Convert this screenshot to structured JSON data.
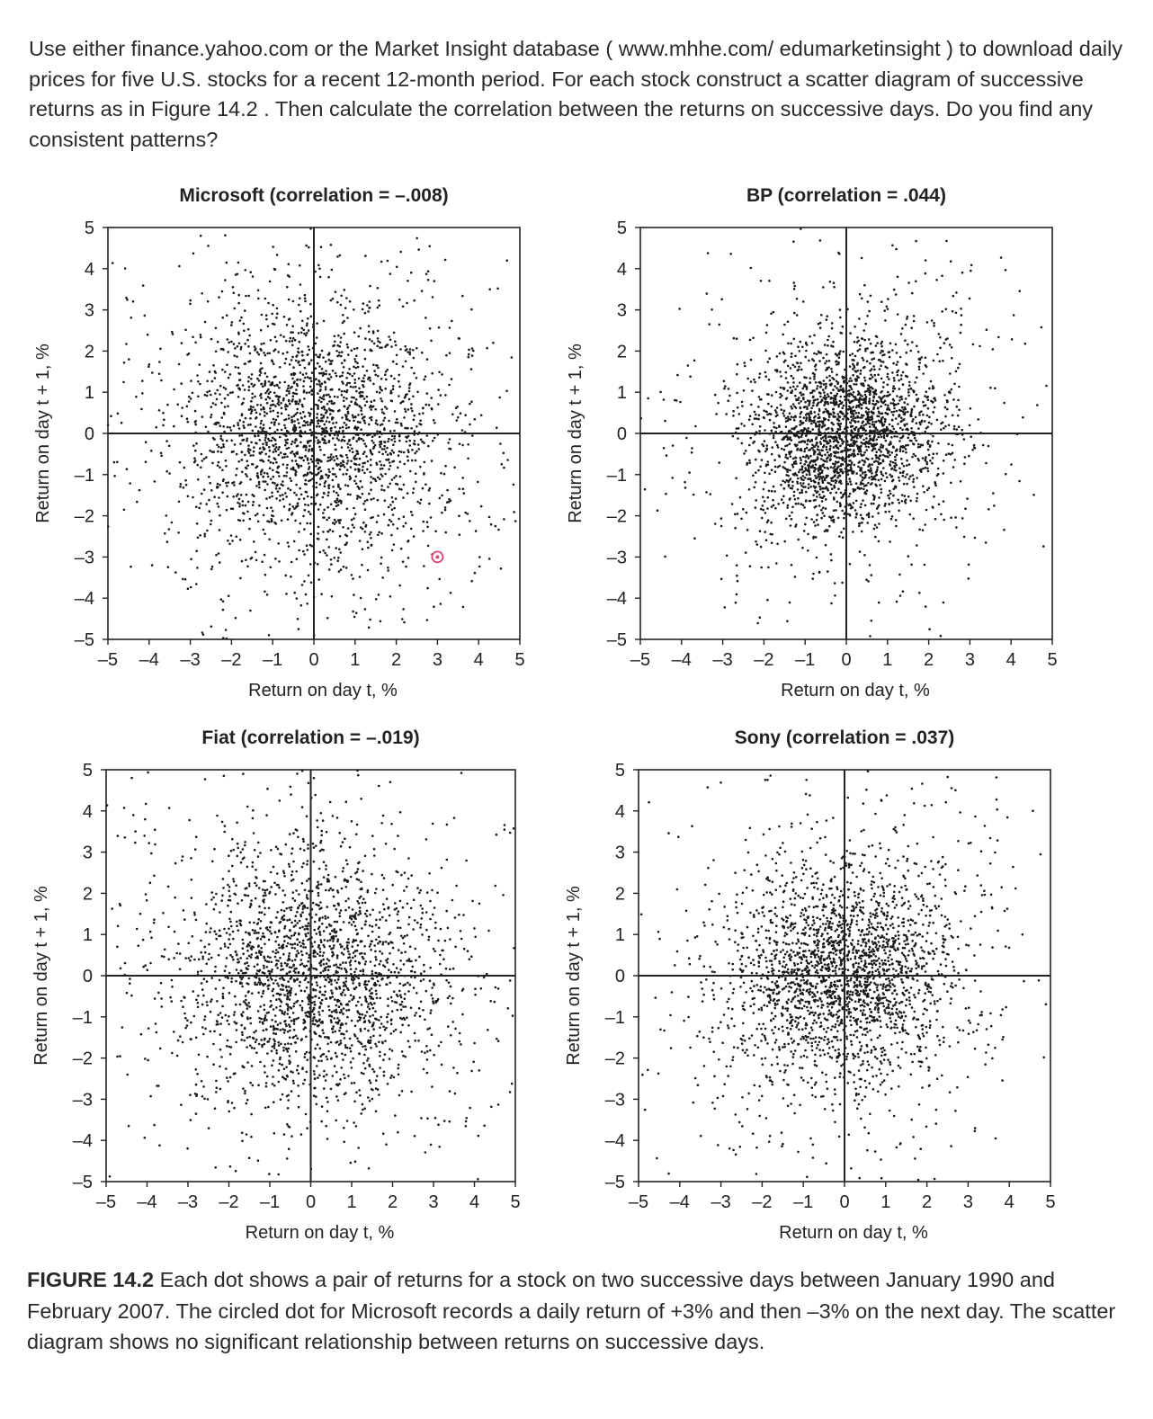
{
  "question": "Use either finance.yahoo.com or the Market Insight database ( www.mhhe.com/ edumarketinsight ) to download daily prices for five U.S. stocks for a recent 12-month period. For each stock construct a scatter diagram of successive returns as in Figure 14.2 . Then calculate the correlation between the returns on successive days. Do you find any consistent patterns?",
  "caption": {
    "label": "FIGURE 14.2",
    "text": " Each dot shows a pair of returns for a stock on two successive days between January 1990 and February 2007. The circled dot for Microsoft records a daily return of +3% and then –3% on the next day. The scatter diagram shows no significant relationship between returns on successive days."
  },
  "colors": {
    "dots": "#1a1a1a",
    "axes": "#222222",
    "highlight": "#e0407a"
  },
  "chart_data": [
    {
      "type": "scatter",
      "title": "Microsoft (correlation = –.008)",
      "xlabel": "Return on day t, %",
      "ylabel": "Return on day t + 1, %",
      "xlim": [
        -5,
        5
      ],
      "ylim": [
        -5,
        5
      ],
      "ticks": [
        "–5",
        "–4",
        "–3",
        "–2",
        "–1",
        "0",
        "1",
        "2",
        "3",
        "4",
        "5"
      ],
      "correlation": -0.008,
      "spread": 1.55,
      "point_count": 2400,
      "highlight_point": {
        "x": 3,
        "y": -3
      }
    },
    {
      "type": "scatter",
      "title": "BP (correlation = .044)",
      "xlabel": "Return on day t, %",
      "ylabel": "Return on day t + 1, %",
      "xlim": [
        -5,
        5
      ],
      "ylim": [
        -5,
        5
      ],
      "ticks": [
        "–5",
        "–4",
        "–3",
        "–2",
        "–1",
        "0",
        "1",
        "2",
        "3",
        "4",
        "5"
      ],
      "correlation": 0.044,
      "spread": 1.1,
      "point_count": 2600
    },
    {
      "type": "scatter",
      "title": "Fiat (correlation = –.019)",
      "xlabel": "Return on day t, %",
      "ylabel": "Return on day t + 1, %",
      "xlim": [
        -5,
        5
      ],
      "ylim": [
        -5,
        5
      ],
      "ticks": [
        "–5",
        "–4",
        "–3",
        "–2",
        "–1",
        "0",
        "1",
        "2",
        "3",
        "4",
        "5"
      ],
      "correlation": -0.019,
      "spread": 1.55,
      "point_count": 2400
    },
    {
      "type": "scatter",
      "title": "Sony (correlation = .037)",
      "xlabel": "Return on day t, %",
      "ylabel": "Return on day t + 1, %",
      "xlim": [
        -5,
        5
      ],
      "ylim": [
        -5,
        5
      ],
      "ticks": [
        "–5",
        "–4",
        "–3",
        "–2",
        "–1",
        "0",
        "1",
        "2",
        "3",
        "4",
        "5"
      ],
      "correlation": 0.037,
      "spread": 1.35,
      "point_count": 2500
    }
  ]
}
